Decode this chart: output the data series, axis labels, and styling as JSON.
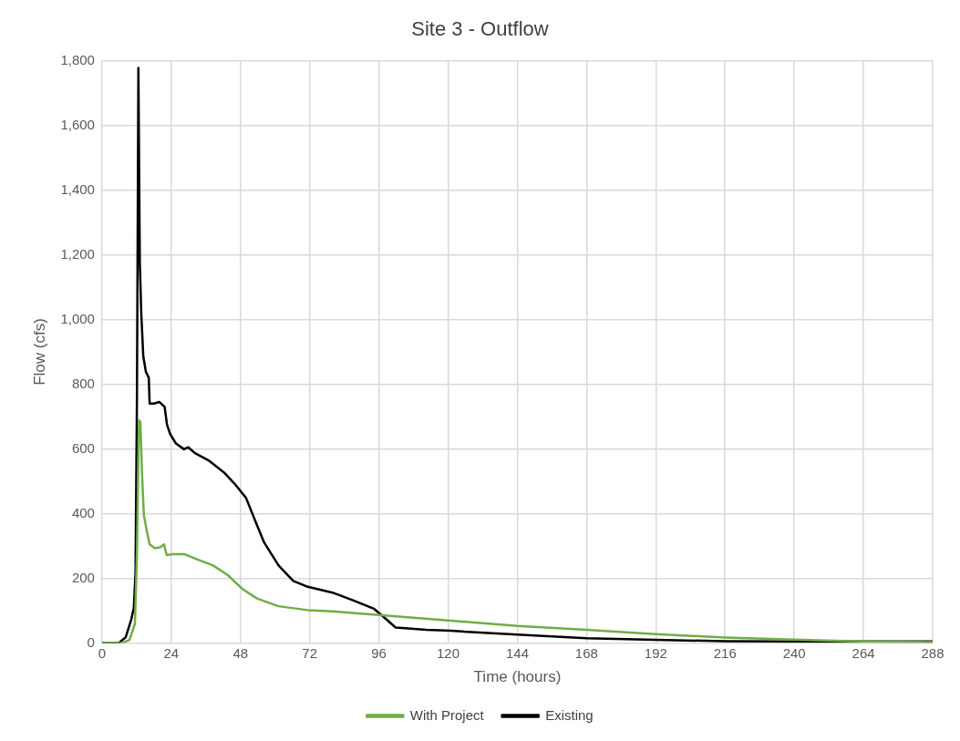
{
  "chart_data": {
    "type": "line",
    "title": "Site 3 - Outflow",
    "xlabel": "Time (hours)",
    "ylabel": "Flow (cfs)",
    "xlim": [
      0,
      288
    ],
    "xticks": [
      0,
      24,
      48,
      72,
      96,
      120,
      144,
      168,
      192,
      216,
      240,
      264,
      288
    ],
    "ylim": [
      0,
      1800
    ],
    "yticks": [
      {
        "value": 0,
        "label": "0"
      },
      {
        "value": 200,
        "label": "200"
      },
      {
        "value": 400,
        "label": "400"
      },
      {
        "value": 600,
        "label": "600"
      },
      {
        "value": 800,
        "label": "800"
      },
      {
        "value": 1000,
        "label": "1,000"
      },
      {
        "value": 1200,
        "label": "1,200"
      },
      {
        "value": 1400,
        "label": "1,400"
      },
      {
        "value": 1600,
        "label": "1,600"
      },
      {
        "value": 1800,
        "label": "1,800"
      }
    ],
    "grid": true,
    "legend": "bottom",
    "marker": "none",
    "line_style": "solid",
    "series": [
      {
        "name": "With Project",
        "color": "#70ad47",
        "x": [
          0,
          6.9,
          9.5,
          11.4,
          12.1,
          12.8,
          13.3,
          13.9,
          14.5,
          15.5,
          16.5,
          18.3,
          20.2,
          21.5,
          22.4,
          24.6,
          28.4,
          33.5,
          38.5,
          43.6,
          48.6,
          53.7,
          61.2,
          71.3,
          79.9,
          96,
          120,
          144,
          168,
          192,
          216,
          234.6,
          248,
          264,
          288
        ],
        "values": [
          0,
          0,
          10,
          60,
          275,
          689,
          683,
          515,
          395,
          347,
          305,
          293,
          296,
          305,
          272,
          275,
          275,
          257,
          240,
          210,
          168,
          138,
          114,
          102,
          98,
          87,
          70,
          53,
          41,
          28,
          17,
          12,
          9,
          5,
          3
        ]
      },
      {
        "name": "Existing",
        "color": "#000000",
        "x": [
          0,
          5.7,
          8.2,
          10.1,
          11,
          11.6,
          12.1,
          12.6,
          13.1,
          13.6,
          14.3,
          15.2,
          16.2,
          16.5,
          18,
          19.9,
          21.7,
          22.5,
          23.6,
          25.6,
          28.4,
          29.9,
          32.2,
          37.2,
          42.3,
          46.1,
          49.9,
          53.7,
          56.2,
          61.2,
          66.3,
          71.3,
          79.9,
          86.8,
          94.3,
          97.5,
          101.8,
          112.5,
          121,
          144,
          168,
          192,
          216,
          240,
          288
        ],
        "values": [
          0,
          0,
          18,
          72,
          108,
          216,
          754,
          1777,
          1174,
          1018,
          886,
          838,
          820,
          740,
          740,
          745,
          730,
          676,
          646,
          617,
          599,
          605,
          587,
          563,
          527,
          491,
          449,
          365,
          311,
          240,
          192,
          174,
          156,
          133,
          106,
          82,
          48,
          41,
          38,
          26,
          15,
          10,
          6,
          5,
          5
        ]
      }
    ]
  }
}
